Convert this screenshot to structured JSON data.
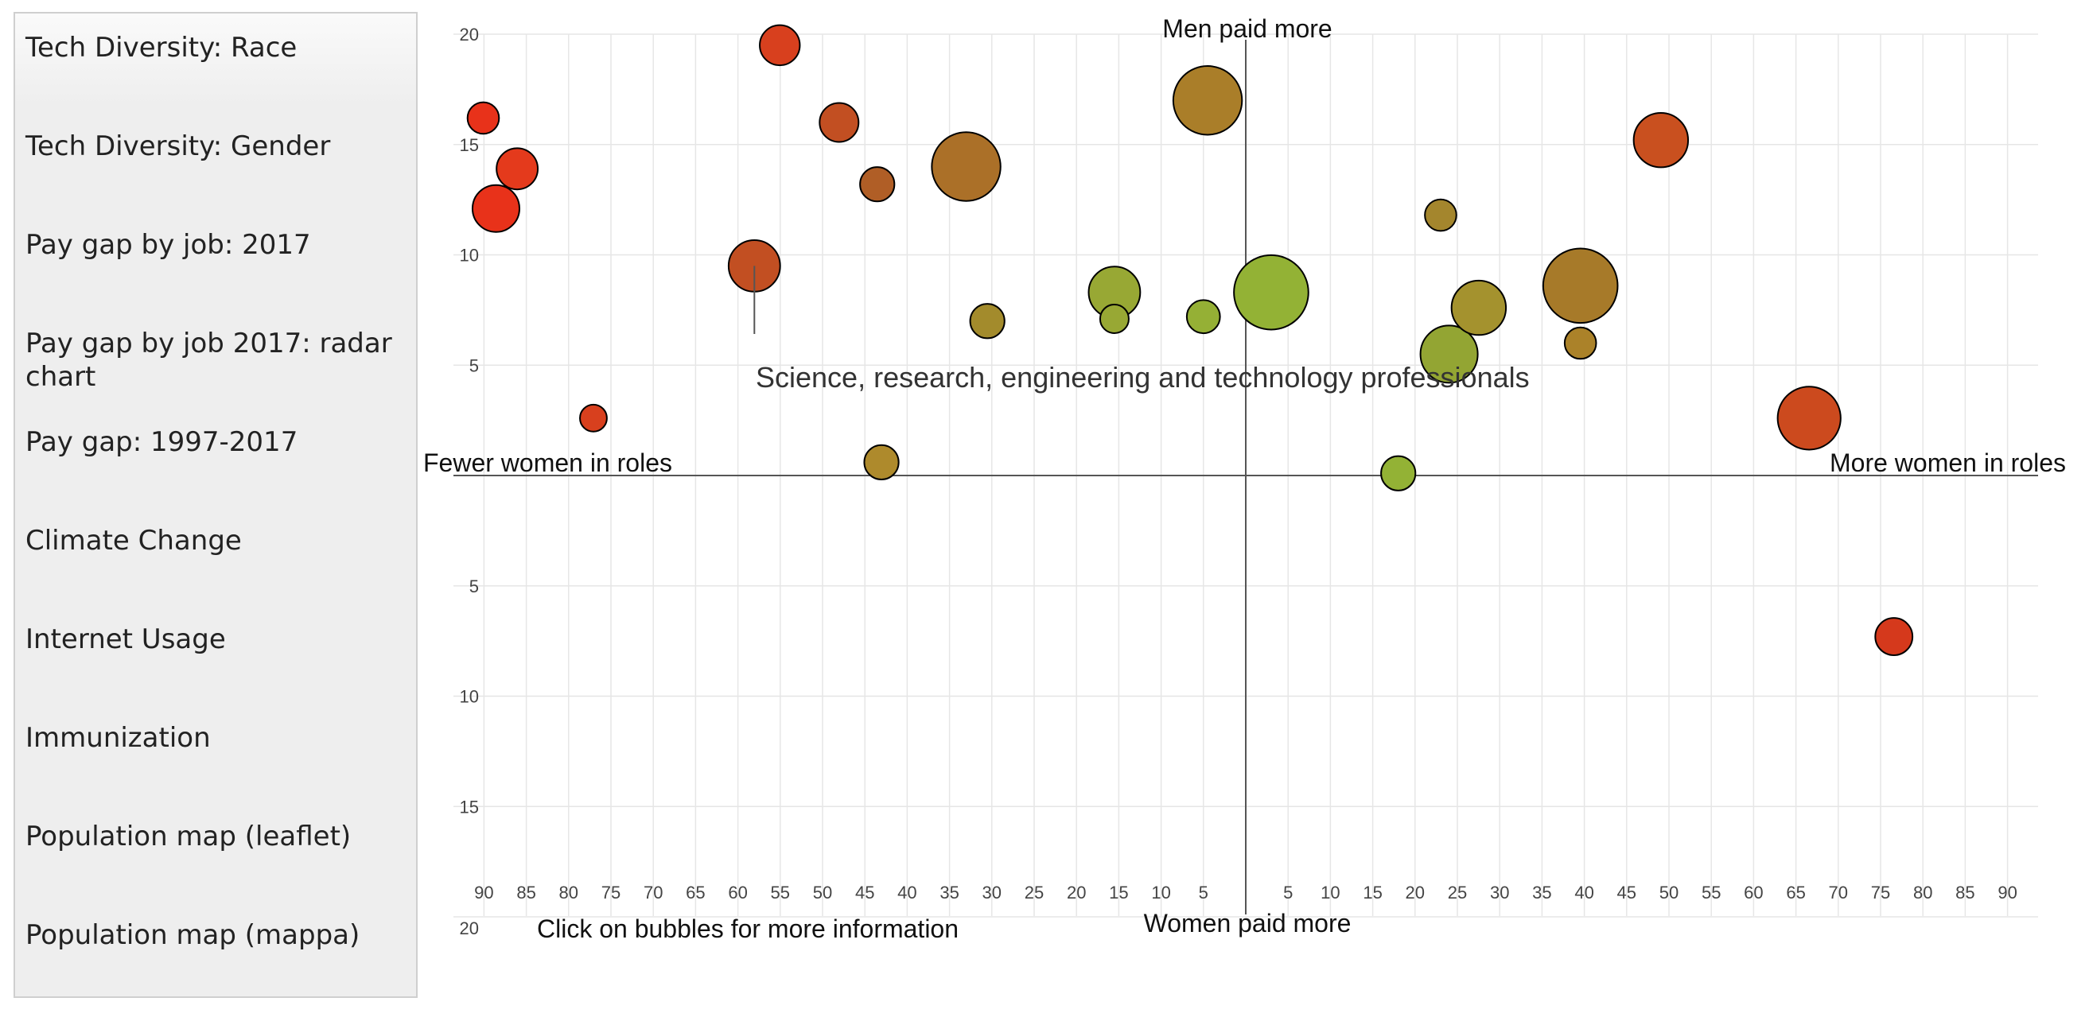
{
  "sidebar": {
    "items": [
      {
        "label": "Tech Diversity: Race"
      },
      {
        "label": "Tech Diversity: Gender"
      },
      {
        "label": "Pay gap by job: 2017"
      },
      {
        "label": "Pay gap by job 2017: radar chart"
      },
      {
        "label": "Pay gap: 1997-2017"
      },
      {
        "label": "Climate Change"
      },
      {
        "label": "Internet Usage"
      },
      {
        "label": "Immunization"
      },
      {
        "label": "Population map (leaflet)"
      },
      {
        "label": "Population map (mappa)"
      }
    ]
  },
  "chart_data": {
    "type": "scatter",
    "title": "",
    "quadrant_labels": {
      "top": "Men paid more",
      "bottom": "Women paid more",
      "left": "Fewer women in roles",
      "right": "More women in roles"
    },
    "hover_label": "Science, research, engineering and technology professionals",
    "footer_note": "Click on bubbles for more information",
    "x_axis": {
      "range": [
        -90,
        90
      ],
      "ticks": [
        "90",
        "85",
        "80",
        "75",
        "70",
        "65",
        "60",
        "55",
        "50",
        "45",
        "40",
        "35",
        "30",
        "25",
        "20",
        "15",
        "10",
        "5",
        "5",
        "10",
        "15",
        "20",
        "25",
        "30",
        "35",
        "40",
        "45",
        "50",
        "55",
        "60",
        "65",
        "70",
        "75",
        "80",
        "85",
        "90"
      ]
    },
    "y_axis": {
      "range": [
        -20,
        20
      ],
      "ticks": [
        "20",
        "15",
        "10",
        "5",
        "5",
        "10",
        "15",
        "20"
      ]
    },
    "grid": true,
    "colors": {
      "high_gap": "#e8321a",
      "mid": "#a8782a",
      "low_gap": "#93b235",
      "axis": "#555555",
      "grid": "#e6e6e6"
    },
    "bubbles": [
      {
        "x": -90.0,
        "y": 16.2,
        "size": 0.55,
        "color": "#e8321a"
      },
      {
        "x": -86.0,
        "y": 13.9,
        "size": 0.72,
        "color": "#e43a1c"
      },
      {
        "x": -88.5,
        "y": 12.1,
        "size": 0.82,
        "color": "#e8321a"
      },
      {
        "x": -77.0,
        "y": 2.6,
        "size": 0.47,
        "color": "#d8401e"
      },
      {
        "x": -55.0,
        "y": 19.5,
        "size": 0.7,
        "color": "#d8401e"
      },
      {
        "x": -48.0,
        "y": 16.0,
        "size": 0.68,
        "color": "#c24f22"
      },
      {
        "x": -43.5,
        "y": 13.2,
        "size": 0.6,
        "color": "#b05e26"
      },
      {
        "x": -58.0,
        "y": 9.5,
        "size": 0.9,
        "color": "#c24f22"
      },
      {
        "x": -33.0,
        "y": 14.0,
        "size": 1.2,
        "color": "#ab7028"
      },
      {
        "x": -30.5,
        "y": 7.0,
        "size": 0.6,
        "color": "#a38b2c"
      },
      {
        "x": -43.0,
        "y": 0.6,
        "size": 0.6,
        "color": "#ae8a2c"
      },
      {
        "x": -15.5,
        "y": 8.3,
        "size": 0.9,
        "color": "#98a834"
      },
      {
        "x": -15.5,
        "y": 7.1,
        "size": 0.5,
        "color": "#98a834"
      },
      {
        "x": -5.0,
        "y": 7.2,
        "size": 0.58,
        "color": "#95b035"
      },
      {
        "x": -4.5,
        "y": 17.0,
        "size": 1.2,
        "color": "#aa7e29"
      },
      {
        "x": 3.0,
        "y": 8.3,
        "size": 1.3,
        "color": "#93b235"
      },
      {
        "x": 18.0,
        "y": 0.1,
        "size": 0.6,
        "color": "#93b235"
      },
      {
        "x": 23.0,
        "y": 11.8,
        "size": 0.55,
        "color": "#a4862d"
      },
      {
        "x": 24.0,
        "y": 5.5,
        "size": 1.0,
        "color": "#93a533"
      },
      {
        "x": 27.5,
        "y": 7.6,
        "size": 0.95,
        "color": "#a4922e"
      },
      {
        "x": 39.5,
        "y": 8.6,
        "size": 1.3,
        "color": "#a77a29"
      },
      {
        "x": 39.5,
        "y": 6.0,
        "size": 0.55,
        "color": "#ab8229"
      },
      {
        "x": 49.0,
        "y": 15.2,
        "size": 0.95,
        "color": "#c9501f"
      },
      {
        "x": 66.5,
        "y": 2.6,
        "size": 1.1,
        "color": "#cc4a1e"
      },
      {
        "x": 76.5,
        "y": -7.3,
        "size": 0.65,
        "color": "#d5391c"
      }
    ]
  }
}
